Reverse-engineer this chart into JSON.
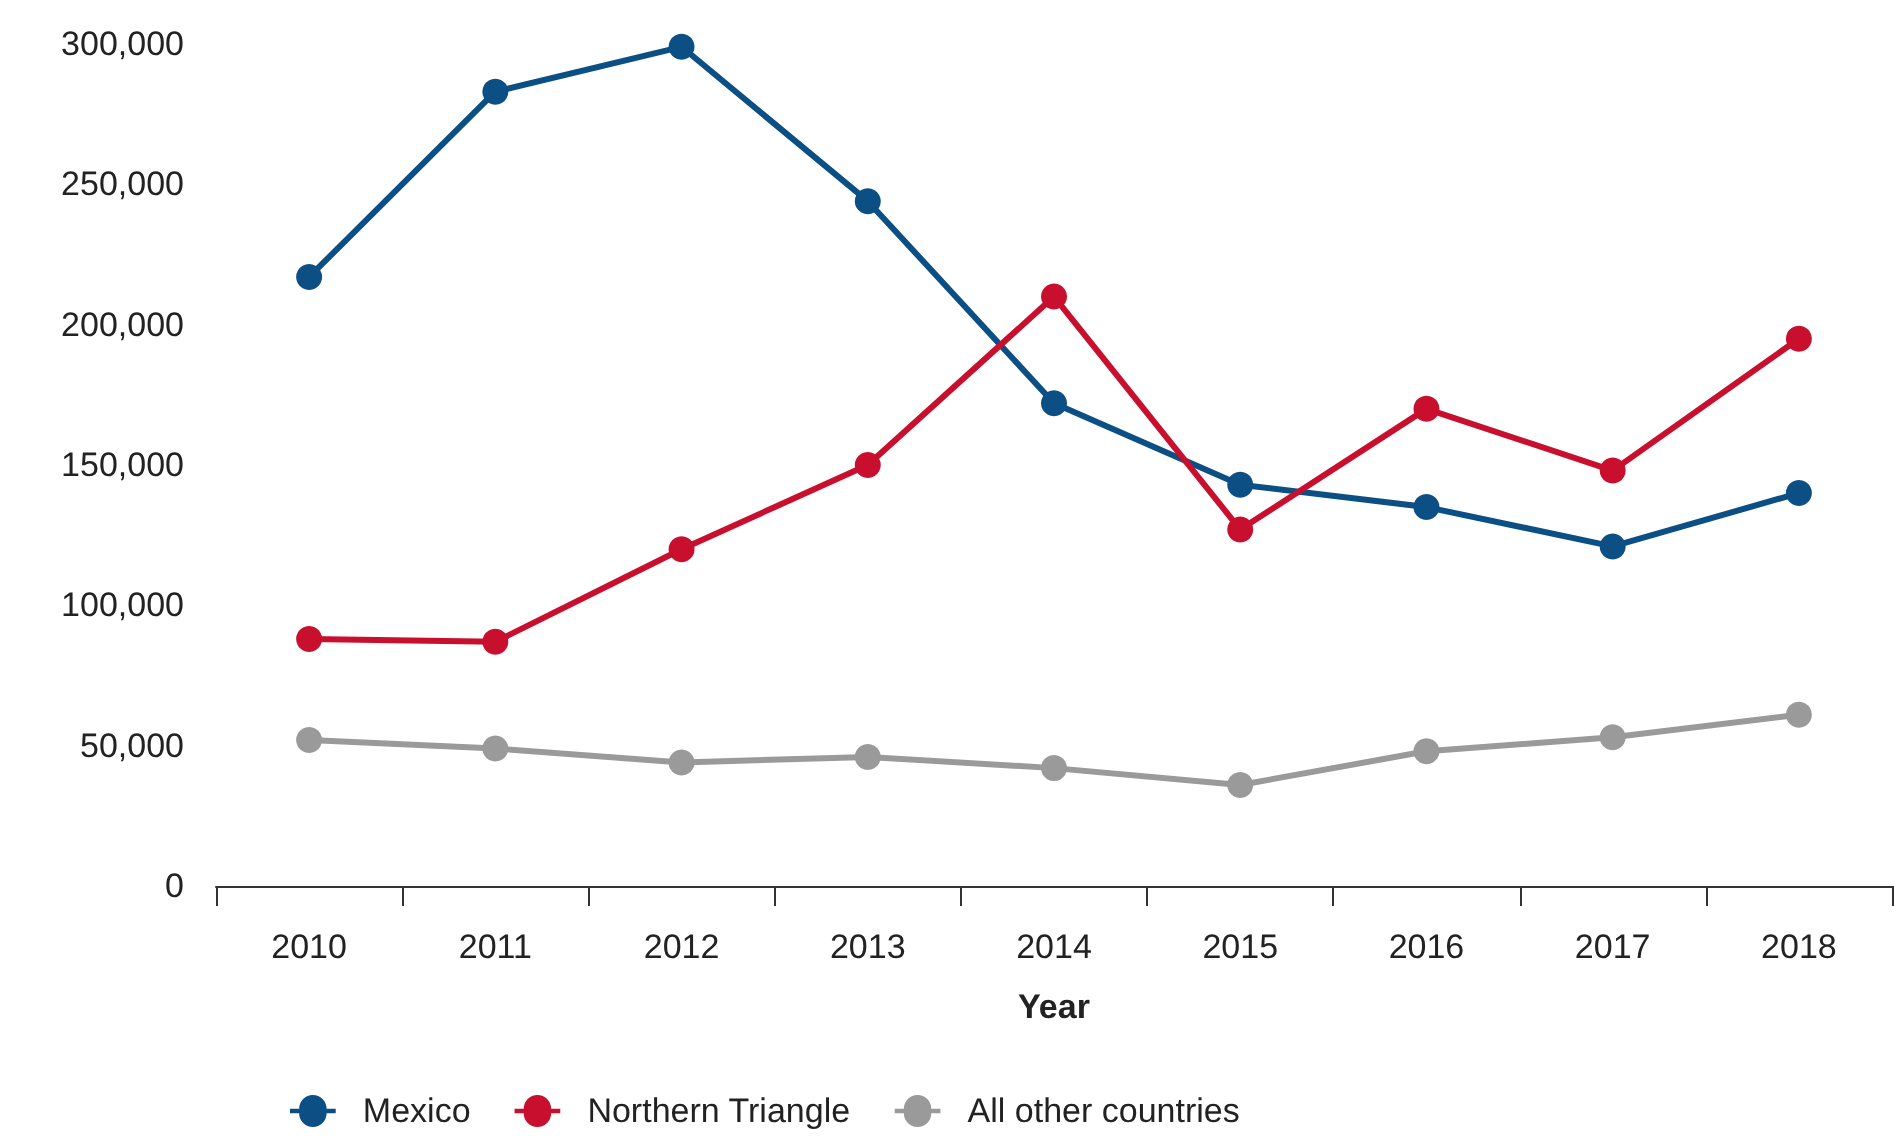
{
  "chart_data": {
    "type": "line",
    "xlabel": "Year",
    "categories": [
      "2010",
      "2011",
      "2012",
      "2013",
      "2014",
      "2015",
      "2016",
      "2017",
      "2018"
    ],
    "series": [
      {
        "name": "Mexico",
        "color": "#0b4f85",
        "values": [
          217000,
          283000,
          299000,
          244000,
          172000,
          143000,
          135000,
          121000,
          140000
        ]
      },
      {
        "name": "Northern Triangle",
        "color": "#c8102e",
        "values": [
          88000,
          87000,
          120000,
          150000,
          210000,
          127000,
          170000,
          148000,
          195000
        ]
      },
      {
        "name": "All other countries",
        "color": "#9a9a9b",
        "values": [
          52000,
          49000,
          44000,
          46000,
          42000,
          36000,
          48000,
          53000,
          61000
        ]
      }
    ],
    "ylim": [
      0,
      300000
    ],
    "yticks": [
      {
        "value": 0,
        "label": "0"
      },
      {
        "value": 50000,
        "label": "50,000"
      },
      {
        "value": 100000,
        "label": "100,000"
      },
      {
        "value": 150000,
        "label": "150,000"
      },
      {
        "value": 200000,
        "label": "200,000"
      },
      {
        "value": 250000,
        "label": "250,000"
      },
      {
        "value": 300000,
        "label": "300,000"
      }
    ],
    "legend": "bottom left",
    "marker": "circle",
    "line_style": "solid"
  }
}
